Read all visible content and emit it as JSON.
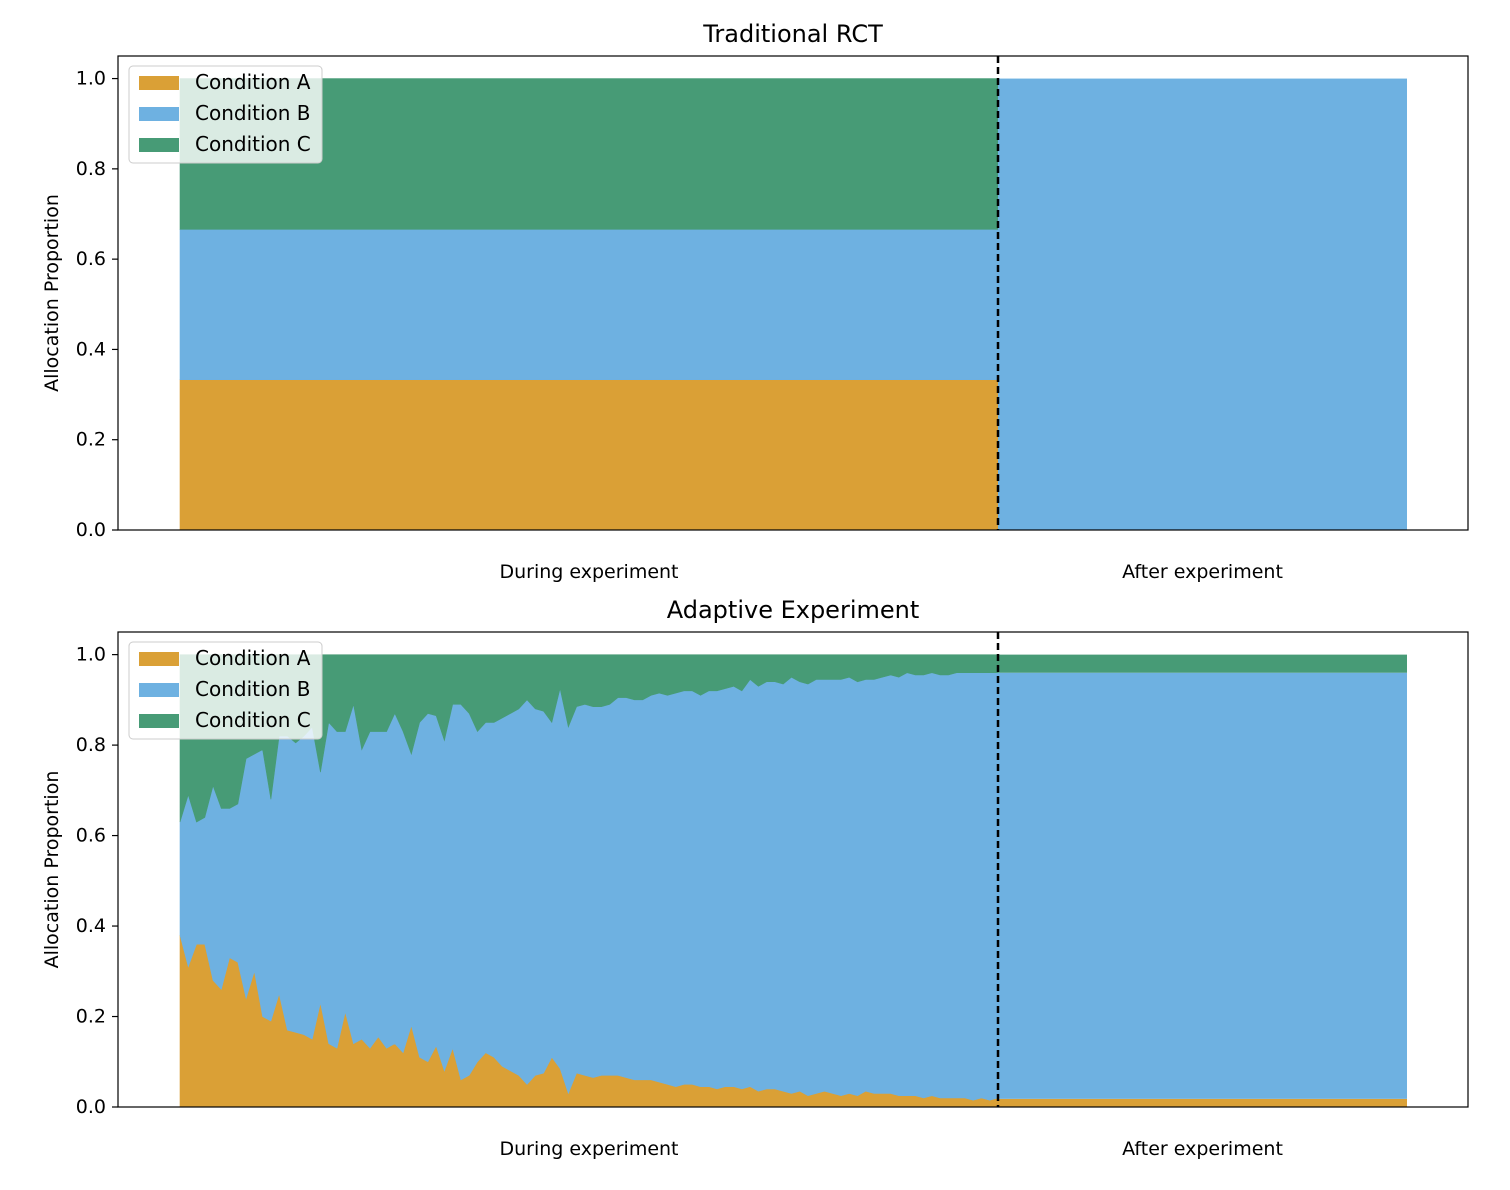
{
  "chart_data": [
    {
      "type": "area",
      "stacked": true,
      "title": "Traditional RCT",
      "ylabel": "Allocation Proportion",
      "xlabel": "",
      "ylim": [
        0,
        1.05
      ],
      "yticks": [
        "0.0",
        "0.2",
        "0.4",
        "0.6",
        "0.8",
        "1.0"
      ],
      "xtick_labels": [
        "During experiment",
        "After experiment"
      ],
      "vline_label": "",
      "legend": {
        "placement": "upper left",
        "entries": [
          "Condition A",
          "Condition B",
          "Condition C"
        ]
      },
      "colors": [
        "#daa036",
        "#6eb1e1",
        "#479b76"
      ],
      "grid": false,
      "during": {
        "n": 100,
        "series": [
          {
            "name": "Condition A",
            "values": [
              0.333
            ]
          },
          {
            "name": "Condition B",
            "values": [
              0.333
            ]
          },
          {
            "name": "Condition C",
            "values": [
              0.334
            ]
          }
        ]
      },
      "after": {
        "series": [
          {
            "name": "Condition A",
            "value": 0.0
          },
          {
            "name": "Condition B",
            "value": 1.0
          },
          {
            "name": "Condition C",
            "value": 0.0
          }
        ]
      }
    },
    {
      "type": "area",
      "stacked": true,
      "title": "Adaptive Experiment",
      "ylabel": "Allocation Proportion",
      "xlabel": "",
      "ylim": [
        0,
        1.05
      ],
      "yticks": [
        "0.0",
        "0.2",
        "0.4",
        "0.6",
        "0.8",
        "1.0"
      ],
      "xtick_labels": [
        "During experiment",
        "After experiment"
      ],
      "legend": {
        "placement": "upper left",
        "entries": [
          "Condition A",
          "Condition B",
          "Condition C"
        ]
      },
      "colors": [
        "#daa036",
        "#6eb1e1",
        "#479b76"
      ],
      "grid": false,
      "during": {
        "n": 100,
        "series": [
          {
            "name": "Condition A",
            "values": [
              0.38,
              0.31,
              0.36,
              0.36,
              0.28,
              0.26,
              0.33,
              0.32,
              0.24,
              0.3,
              0.2,
              0.19,
              0.25,
              0.17,
              0.165,
              0.16,
              0.15,
              0.23,
              0.14,
              0.13,
              0.21,
              0.14,
              0.15,
              0.13,
              0.155,
              0.13,
              0.14,
              0.12,
              0.18,
              0.11,
              0.1,
              0.135,
              0.08,
              0.13,
              0.06,
              0.07,
              0.1,
              0.12,
              0.11,
              0.09,
              0.08,
              0.07,
              0.05,
              0.07,
              0.075,
              0.11,
              0.085,
              0.03,
              0.075,
              0.07,
              0.065,
              0.07,
              0.07,
              0.07,
              0.065,
              0.06,
              0.06,
              0.06,
              0.055,
              0.05,
              0.045,
              0.05,
              0.05,
              0.045,
              0.045,
              0.04,
              0.045,
              0.045,
              0.04,
              0.045,
              0.035,
              0.04,
              0.04,
              0.035,
              0.03,
              0.035,
              0.025,
              0.03,
              0.035,
              0.03,
              0.025,
              0.03,
              0.025,
              0.035,
              0.03,
              0.03,
              0.03,
              0.025,
              0.025,
              0.025,
              0.02,
              0.025,
              0.02,
              0.02,
              0.02,
              0.02,
              0.015,
              0.02,
              0.015,
              0.02
            ]
          },
          {
            "name": "Condition B",
            "values": [
              0.25,
              0.38,
              0.27,
              0.28,
              0.43,
              0.4,
              0.33,
              0.35,
              0.53,
              0.48,
              0.59,
              0.49,
              0.57,
              0.65,
              0.64,
              0.66,
              0.69,
              0.51,
              0.71,
              0.7,
              0.62,
              0.75,
              0.64,
              0.7,
              0.675,
              0.7,
              0.73,
              0.71,
              0.6,
              0.74,
              0.77,
              0.73,
              0.73,
              0.76,
              0.83,
              0.8,
              0.73,
              0.73,
              0.74,
              0.77,
              0.79,
              0.81,
              0.85,
              0.81,
              0.8,
              0.74,
              0.84,
              0.81,
              0.81,
              0.82,
              0.82,
              0.815,
              0.82,
              0.835,
              0.84,
              0.84,
              0.84,
              0.85,
              0.86,
              0.86,
              0.87,
              0.87,
              0.87,
              0.865,
              0.875,
              0.88,
              0.88,
              0.885,
              0.88,
              0.9,
              0.895,
              0.9,
              0.9,
              0.9,
              0.92,
              0.905,
              0.91,
              0.915,
              0.91,
              0.915,
              0.92,
              0.92,
              0.915,
              0.91,
              0.915,
              0.92,
              0.925,
              0.925,
              0.935,
              0.93,
              0.935,
              0.935,
              0.935,
              0.935,
              0.94,
              0.94,
              0.945,
              0.94,
              0.945,
              0.94
            ]
          },
          {
            "name": "Condition C",
            "values": [
              0.37,
              0.31,
              0.37,
              0.36,
              0.29,
              0.34,
              0.34,
              0.33,
              0.23,
              0.22,
              0.21,
              0.32,
              0.18,
              0.18,
              0.195,
              0.18,
              0.16,
              0.26,
              0.15,
              0.17,
              0.17,
              0.11,
              0.21,
              0.17,
              0.17,
              0.17,
              0.13,
              0.17,
              0.22,
              0.15,
              0.13,
              0.135,
              0.19,
              0.11,
              0.11,
              0.13,
              0.17,
              0.15,
              0.15,
              0.14,
              0.13,
              0.12,
              0.1,
              0.12,
              0.125,
              0.15,
              0.075,
              0.16,
              0.115,
              0.11,
              0.115,
              0.115,
              0.11,
              0.095,
              0.095,
              0.1,
              0.1,
              0.09,
              0.085,
              0.09,
              0.085,
              0.08,
              0.08,
              0.09,
              0.08,
              0.08,
              0.075,
              0.07,
              0.08,
              0.055,
              0.07,
              0.06,
              0.06,
              0.065,
              0.05,
              0.06,
              0.065,
              0.055,
              0.055,
              0.055,
              0.055,
              0.05,
              0.06,
              0.055,
              0.055,
              0.05,
              0.045,
              0.05,
              0.04,
              0.045,
              0.045,
              0.04,
              0.045,
              0.045,
              0.04,
              0.04,
              0.04,
              0.04,
              0.04,
              0.04
            ]
          }
        ]
      },
      "after": {
        "series": [
          {
            "name": "Condition A",
            "value": 0.018
          },
          {
            "name": "Condition B",
            "value": 0.942
          },
          {
            "name": "Condition C",
            "value": 0.04
          }
        ]
      }
    }
  ]
}
